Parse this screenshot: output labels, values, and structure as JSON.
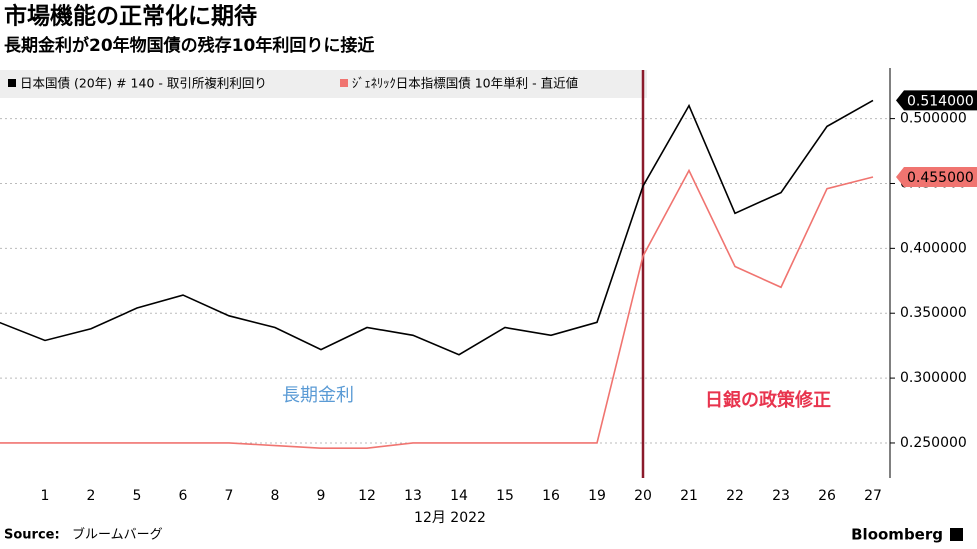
{
  "chart_data": {
    "type": "line",
    "title": "市場機能の正常化に期待",
    "subtitle": "長期金利が20年物国債の残存10年利回りに接近",
    "x_label": "12月 2022",
    "categories": [
      null,
      "1",
      "2",
      "5",
      "6",
      "7",
      "8",
      "9",
      "12",
      "13",
      "14",
      "15",
      "16",
      "19",
      "20",
      "21",
      "22",
      "23",
      "26",
      "27"
    ],
    "series": [
      {
        "name": "日本国債 (20年) # 140 - 取引所複利利回り",
        "color": "#000000",
        "values": [
          0.343,
          0.329,
          0.338,
          0.354,
          0.364,
          0.348,
          0.339,
          0.322,
          0.339,
          0.333,
          0.318,
          0.339,
          0.333,
          0.343,
          0.448,
          0.51,
          0.427,
          0.443,
          0.494,
          0.514
        ],
        "value_labels": [
          null,
          null,
          null,
          null,
          null,
          null,
          null,
          null,
          null,
          null,
          null,
          null,
          null,
          null,
          null,
          null,
          null,
          null,
          null,
          "0.514000"
        ]
      },
      {
        "name": "ｼﾞｪﾈﾘｯｸ日本指標国債  10年単利  - 直近値",
        "color": "#f07470",
        "values": [
          0.25,
          0.25,
          0.25,
          0.25,
          0.25,
          0.25,
          0.248,
          0.246,
          0.246,
          0.25,
          0.25,
          0.25,
          0.25,
          0.25,
          0.394,
          0.46,
          0.386,
          0.37,
          0.446,
          0.455
        ],
        "value_labels": [
          null,
          null,
          null,
          null,
          null,
          null,
          null,
          null,
          null,
          null,
          null,
          null,
          null,
          null,
          null,
          null,
          null,
          null,
          null,
          "0.455000"
        ]
      }
    ],
    "ylim": [
      0.223,
      0.539
    ],
    "yticks": [
      {
        "value": 0.25,
        "label": "0.250000"
      },
      {
        "value": 0.3,
        "label": "0.300000"
      },
      {
        "value": 0.35,
        "label": "0.350000"
      },
      {
        "value": 0.4,
        "label": "0.400000"
      },
      {
        "value": 0.45,
        "label": "0.450000"
      },
      {
        "value": 0.5,
        "label": "0.500000"
      }
    ],
    "grid": true,
    "annotations": [
      {
        "text": "長期金利",
        "color": "#5b9bd5"
      },
      {
        "text": "日銀の政策修正",
        "color": "#e8344e",
        "x": "20",
        "line_color": "#8b1a2b"
      }
    ],
    "source_label": "Source:",
    "source": "ブルームバーグ",
    "brand": "Bloomberg"
  }
}
